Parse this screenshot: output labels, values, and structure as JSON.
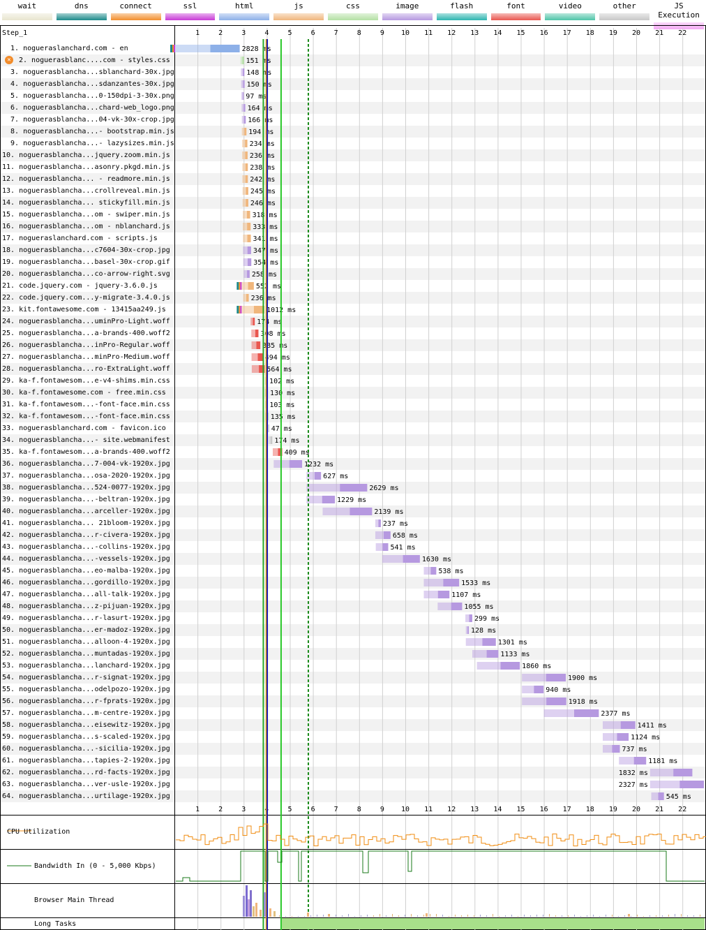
{
  "legend": [
    {
      "label": "wait",
      "color": "#e8e5cf"
    },
    {
      "label": "dns",
      "color": "#1c8a8a"
    },
    {
      "label": "connect",
      "color": "#f28e2c"
    },
    {
      "label": "ssl",
      "color": "#c73ad6"
    },
    {
      "label": "html",
      "color": "#8db0e8"
    },
    {
      "label": "js",
      "color": "#f0b67c"
    },
    {
      "label": "css",
      "color": "#b4e0a4"
    },
    {
      "label": "image",
      "color": "#b699e0"
    },
    {
      "label": "flash",
      "color": "#2cb5b0"
    },
    {
      "label": "font",
      "color": "#e9574f"
    },
    {
      "label": "video",
      "color": "#4ec4a8"
    },
    {
      "label": "other",
      "color": "#c8c8c8"
    },
    {
      "label": "JS Execution",
      "color": "#f4a7f4"
    }
  ],
  "step_label": "Step_1",
  "chart_data": {
    "type": "waterfall",
    "x_unit": "seconds",
    "xlim": [
      0,
      23
    ],
    "ticks": [
      1,
      2,
      3,
      4,
      5,
      6,
      7,
      8,
      9,
      10,
      11,
      12,
      13,
      14,
      15,
      16,
      17,
      18,
      19,
      20,
      21,
      22
    ],
    "markers": [
      {
        "name": "start-render",
        "time": 3.85,
        "color": "#28a828",
        "style": "solid"
      },
      {
        "name": "dom-interactive",
        "time": 3.98,
        "color": "#f0a000",
        "style": "solid"
      },
      {
        "name": "dom-content-loaded",
        "time": 4.02,
        "color": "#1b1bb0",
        "style": "solid"
      },
      {
        "name": "on-load",
        "time": 4.62,
        "color": "#28c828",
        "style": "solid"
      },
      {
        "name": "document-complete",
        "time": 5.8,
        "color": "#1a8a1a",
        "style": "dashed"
      }
    ],
    "requests": [
      {
        "n": "1.",
        "label": "nogueraslanchard.com - en",
        "type": "html",
        "start": 0.0,
        "end": 2.828,
        "dur": "2828 ms",
        "conn": true,
        "error": false
      },
      {
        "n": "2.",
        "label": "noguerasblanc....com - styles.css",
        "type": "css",
        "start": 2.86,
        "end": 3.01,
        "dur": "151 ms",
        "error": true
      },
      {
        "n": "3.",
        "label": "noguerasblancha...sblanchard-30x.jpg",
        "type": "image",
        "start": 2.88,
        "end": 3.03,
        "dur": "148 ms"
      },
      {
        "n": "4.",
        "label": "noguerasblancha...sdanzantes-30x.jpg",
        "type": "image",
        "start": 2.89,
        "end": 3.04,
        "dur": "150 ms"
      },
      {
        "n": "5.",
        "label": "noguerasblancha...0-150dpi-3-30x.png",
        "type": "image",
        "start": 2.9,
        "end": 3.0,
        "dur": "97 ms"
      },
      {
        "n": "6.",
        "label": "noguerasblancha...chard-web_logo.png",
        "type": "image",
        "start": 2.91,
        "end": 3.07,
        "dur": "164 ms"
      },
      {
        "n": "7.",
        "label": "noguerasblancha...04-vk-30x-crop.jpg",
        "type": "image",
        "start": 2.92,
        "end": 3.09,
        "dur": "166 ms"
      },
      {
        "n": "8.",
        "label": "noguerasblancha...- bootstrap.min.js",
        "type": "js",
        "start": 2.92,
        "end": 3.12,
        "dur": "194 ms"
      },
      {
        "n": "9.",
        "label": "noguerasblancha...- lazysizes.min.js",
        "type": "js",
        "start": 2.93,
        "end": 3.16,
        "dur": "234 ms"
      },
      {
        "n": "10.",
        "label": "noguerasblancha...jquery.zoom.min.js",
        "type": "js",
        "start": 2.93,
        "end": 3.17,
        "dur": "236 ms"
      },
      {
        "n": "11.",
        "label": "noguerasblancha...asonry.pkgd.min.js",
        "type": "js",
        "start": 2.94,
        "end": 3.18,
        "dur": "238 ms"
      },
      {
        "n": "12.",
        "label": "noguerasblancha... - readmore.min.js",
        "type": "js",
        "start": 2.94,
        "end": 3.18,
        "dur": "242 ms"
      },
      {
        "n": "13.",
        "label": "noguerasblancha...crollreveal.min.js",
        "type": "js",
        "start": 2.95,
        "end": 3.2,
        "dur": "245 ms"
      },
      {
        "n": "14.",
        "label": "noguerasblancha... stickyfill.min.js",
        "type": "js",
        "start": 2.95,
        "end": 3.2,
        "dur": "246 ms"
      },
      {
        "n": "15.",
        "label": "noguerasblancha...om - swiper.min.js",
        "type": "js",
        "start": 2.96,
        "end": 3.28,
        "dur": "318 ms"
      },
      {
        "n": "16.",
        "label": "noguerasblancha...om - nblanchard.js",
        "type": "js",
        "start": 2.96,
        "end": 3.3,
        "dur": "333 ms"
      },
      {
        "n": "17.",
        "label": "nogueraslanchard.com - scripts.js",
        "type": "js",
        "start": 2.97,
        "end": 3.31,
        "dur": "341 ms"
      },
      {
        "n": "18.",
        "label": "noguerasblancha...c7604-30x-crop.jpg",
        "type": "image",
        "start": 2.97,
        "end": 3.32,
        "dur": "347 ms"
      },
      {
        "n": "19.",
        "label": "noguerasblancha...basel-30x-crop.gif",
        "type": "image",
        "start": 2.98,
        "end": 3.33,
        "dur": "354 ms"
      },
      {
        "n": "20.",
        "label": "noguerasblancha...co-arrow-right.svg",
        "type": "image",
        "start": 3.0,
        "end": 3.26,
        "dur": "258 ms"
      },
      {
        "n": "21.",
        "label": "code.jquery.com - jquery-3.6.0.js",
        "type": "js",
        "start": 2.88,
        "end": 3.44,
        "dur": "552 ms",
        "conn": true
      },
      {
        "n": "22.",
        "label": "code.jquery.com...y-migrate-3.4.0.js",
        "type": "js",
        "start": 2.98,
        "end": 3.22,
        "dur": "236 ms"
      },
      {
        "n": "23.",
        "label": "kit.fontawesome.com - 13415aa249.js",
        "type": "js",
        "start": 2.88,
        "end": 3.9,
        "dur": "1012 ms",
        "conn": true
      },
      {
        "n": "24.",
        "label": "noguerasblancha...uminPro-Light.woff",
        "type": "font",
        "start": 3.3,
        "end": 3.48,
        "dur": "174 ms"
      },
      {
        "n": "25.",
        "label": "noguerasblancha...a-brands-400.woff2",
        "type": "font",
        "start": 3.33,
        "end": 3.64,
        "dur": "308 ms"
      },
      {
        "n": "26.",
        "label": "noguerasblancha...inPro-Regular.woff",
        "type": "font",
        "start": 3.34,
        "end": 3.72,
        "dur": "385 ms"
      },
      {
        "n": "27.",
        "label": "noguerasblancha...minPro-Medium.woff",
        "type": "font",
        "start": 3.34,
        "end": 3.83,
        "dur": "494 ms"
      },
      {
        "n": "28.",
        "label": "noguerasblancha...ro-ExtraLight.woff",
        "type": "font",
        "start": 3.35,
        "end": 3.91,
        "dur": "564 ms"
      },
      {
        "n": "29.",
        "label": "ka-f.fontawesom...e-v4-shims.min.css",
        "type": "css",
        "start": 3.92,
        "end": 4.02,
        "dur": "102 ms"
      },
      {
        "n": "30.",
        "label": "ka-f.fontawesome.com - free.min.css",
        "type": "css",
        "start": 3.92,
        "end": 4.05,
        "dur": "130 ms"
      },
      {
        "n": "31.",
        "label": "ka-f.fontawesom...-font-face.min.css",
        "type": "css",
        "start": 3.93,
        "end": 4.03,
        "dur": "103 ms"
      },
      {
        "n": "32.",
        "label": "ka-f.fontawesom...-font-face.min.css",
        "type": "css",
        "start": 3.93,
        "end": 4.07,
        "dur": "135 ms"
      },
      {
        "n": "33.",
        "label": "noguerasblanchard.com - favicon.ico",
        "type": "other",
        "start": 4.04,
        "end": 4.09,
        "dur": "47 ms"
      },
      {
        "n": "34.",
        "label": "noguerasblancha...- site.webmanifest",
        "type": "other",
        "start": 4.07,
        "end": 4.24,
        "dur": "174 ms"
      },
      {
        "n": "35.",
        "label": "ka-f.fontawesom...a-brands-400.woff2",
        "type": "font",
        "start": 4.26,
        "end": 4.67,
        "dur": "409 ms"
      },
      {
        "n": "36.",
        "label": "noguerasblancha...7-004-vk-1920x.jpg",
        "type": "image",
        "start": 4.3,
        "end": 5.53,
        "dur": "1232 ms"
      },
      {
        "n": "37.",
        "label": "noguerasblancha...osa-2020-1920x.jpg",
        "type": "image",
        "start": 5.72,
        "end": 6.35,
        "dur": "627 ms"
      },
      {
        "n": "38.",
        "label": "noguerasblancha...524-0077-1920x.jpg",
        "type": "image",
        "start": 5.72,
        "end": 8.35,
        "dur": "2629 ms"
      },
      {
        "n": "39.",
        "label": "noguerasblancha...-beltran-1920x.jpg",
        "type": "image",
        "start": 5.72,
        "end": 6.95,
        "dur": "1229 ms"
      },
      {
        "n": "40.",
        "label": "noguerasblancha...arceller-1920x.jpg",
        "type": "image",
        "start": 6.42,
        "end": 8.56,
        "dur": "2139 ms"
      },
      {
        "n": "41.",
        "label": "noguerasblancha... 21bloom-1920x.jpg",
        "type": "image",
        "start": 8.7,
        "end": 8.94,
        "dur": "237 ms"
      },
      {
        "n": "42.",
        "label": "noguerasblancha...r-civera-1920x.jpg",
        "type": "image",
        "start": 8.7,
        "end": 9.36,
        "dur": "658 ms"
      },
      {
        "n": "43.",
        "label": "noguerasblancha...-collins-1920x.jpg",
        "type": "image",
        "start": 8.72,
        "end": 9.26,
        "dur": "541 ms"
      },
      {
        "n": "44.",
        "label": "noguerasblancha...-vessels-1920x.jpg",
        "type": "image",
        "start": 9.0,
        "end": 10.63,
        "dur": "1630 ms"
      },
      {
        "n": "45.",
        "label": "noguerasblancha...eo-malba-1920x.jpg",
        "type": "image",
        "start": 10.8,
        "end": 11.34,
        "dur": "538 ms"
      },
      {
        "n": "46.",
        "label": "noguerasblancha...gordillo-1920x.jpg",
        "type": "image",
        "start": 10.8,
        "end": 12.33,
        "dur": "1533 ms"
      },
      {
        "n": "47.",
        "label": "noguerasblancha...all-talk-1920x.jpg",
        "type": "image",
        "start": 10.8,
        "end": 11.91,
        "dur": "1107 ms"
      },
      {
        "n": "48.",
        "label": "noguerasblancha...z-pijuan-1920x.jpg",
        "type": "image",
        "start": 11.4,
        "end": 12.46,
        "dur": "1055 ms"
      },
      {
        "n": "49.",
        "label": "noguerasblancha...r-lasurt-1920x.jpg",
        "type": "image",
        "start": 12.6,
        "end": 12.9,
        "dur": "299 ms"
      },
      {
        "n": "50.",
        "label": "noguerasblancha...er-madoz-1920x.jpg",
        "type": "image",
        "start": 12.62,
        "end": 12.75,
        "dur": "128 ms"
      },
      {
        "n": "51.",
        "label": "noguerasblancha...alloon-4-1920x.jpg",
        "type": "image",
        "start": 12.62,
        "end": 13.92,
        "dur": "1301 ms"
      },
      {
        "n": "52.",
        "label": "noguerasblancha...muntadas-1920x.jpg",
        "type": "image",
        "start": 12.9,
        "end": 14.03,
        "dur": "1133 ms"
      },
      {
        "n": "53.",
        "label": "noguerasblancha...lanchard-1920x.jpg",
        "type": "image",
        "start": 13.1,
        "end": 14.96,
        "dur": "1860 ms"
      },
      {
        "n": "54.",
        "label": "noguerasblancha...r-signat-1920x.jpg",
        "type": "image",
        "start": 15.05,
        "end": 16.95,
        "dur": "1900 ms"
      },
      {
        "n": "55.",
        "label": "noguerasblancha...odelpozo-1920x.jpg",
        "type": "image",
        "start": 15.05,
        "end": 15.99,
        "dur": "940 ms"
      },
      {
        "n": "56.",
        "label": "noguerasblancha...r-fprats-1920x.jpg",
        "type": "image",
        "start": 15.05,
        "end": 16.97,
        "dur": "1918 ms"
      },
      {
        "n": "57.",
        "label": "noguerasblancha...m-centre-1920x.jpg",
        "type": "image",
        "start": 16.0,
        "end": 18.38,
        "dur": "2377 ms"
      },
      {
        "n": "58.",
        "label": "noguerasblancha...eisewitz-1920x.jpg",
        "type": "image",
        "start": 18.55,
        "end": 19.96,
        "dur": "1411 ms"
      },
      {
        "n": "59.",
        "label": "noguerasblancha...s-scaled-1920x.jpg",
        "type": "image",
        "start": 18.55,
        "end": 19.67,
        "dur": "1124 ms"
      },
      {
        "n": "60.",
        "label": "noguerasblancha...-sicilia-1920x.jpg",
        "type": "image",
        "start": 18.55,
        "end": 19.29,
        "dur": "737 ms"
      },
      {
        "n": "61.",
        "label": "noguerasblancha...tapies-2-1920x.jpg",
        "type": "image",
        "start": 19.25,
        "end": 20.43,
        "dur": "1181 ms"
      },
      {
        "n": "62.",
        "label": "noguerasblancha...rd-facts-1920x.jpg",
        "type": "image",
        "start": 20.6,
        "end": 22.43,
        "dur": "1832 ms",
        "label_left": true
      },
      {
        "n": "63.",
        "label": "noguerasblancha...ver-usle-1920x.jpg",
        "type": "image",
        "start": 20.6,
        "end": 22.93,
        "dur": "2327 ms",
        "label_left": true
      },
      {
        "n": "64.",
        "label": "noguerasblancha...urtilage-1920x.jpg",
        "type": "image",
        "start": 20.65,
        "end": 21.2,
        "dur": "545 ms"
      }
    ],
    "graphs": {
      "cpu_label": "CPU Utilization",
      "bandwidth_label": "Bandwidth In (0 - 5,000 Kbps)",
      "main_thread_label": "Browser Main Thread",
      "long_tasks_label": "Long Tasks"
    }
  }
}
